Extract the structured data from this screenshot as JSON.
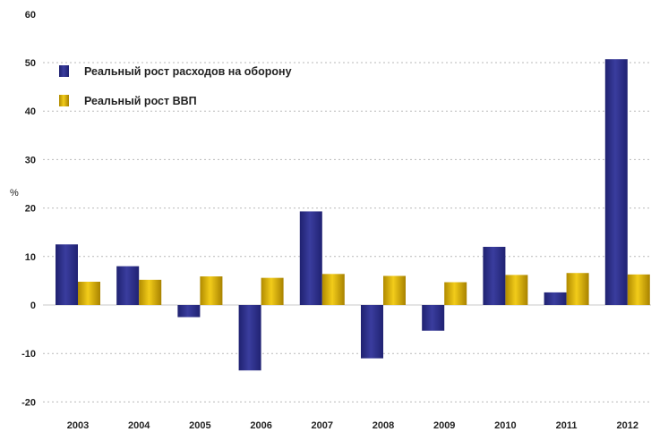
{
  "chart_data": {
    "type": "bar",
    "ylabel": "%",
    "ylim": [
      -20,
      60
    ],
    "yticks": [
      -20,
      -10,
      0,
      10,
      20,
      30,
      40,
      50,
      60
    ],
    "grid": true,
    "legend_position": "top-left",
    "categories": [
      "2003",
      "2004",
      "2005",
      "2006",
      "2007",
      "2008",
      "2009",
      "2010",
      "2011",
      "2012"
    ],
    "series": [
      {
        "name": "Реальный рост расходов на оборону",
        "color": "#2b2d83",
        "values": [
          12.5,
          8.0,
          -2.5,
          -13.5,
          19.3,
          -11.0,
          -5.3,
          12.0,
          2.6,
          50.7
        ]
      },
      {
        "name": "Реальный рост ВВП",
        "color": "#d9b100",
        "values": [
          4.8,
          5.2,
          5.9,
          5.6,
          6.4,
          6.0,
          4.7,
          6.2,
          6.6,
          6.3
        ]
      }
    ]
  }
}
